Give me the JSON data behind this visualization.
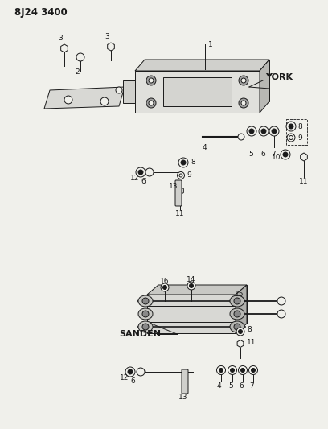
{
  "title": "8J24 3400",
  "bg": "#f5f5f0",
  "tc": "#1a1a1a",
  "fig_width": 4.08,
  "fig_height": 5.33,
  "dpi": 100
}
